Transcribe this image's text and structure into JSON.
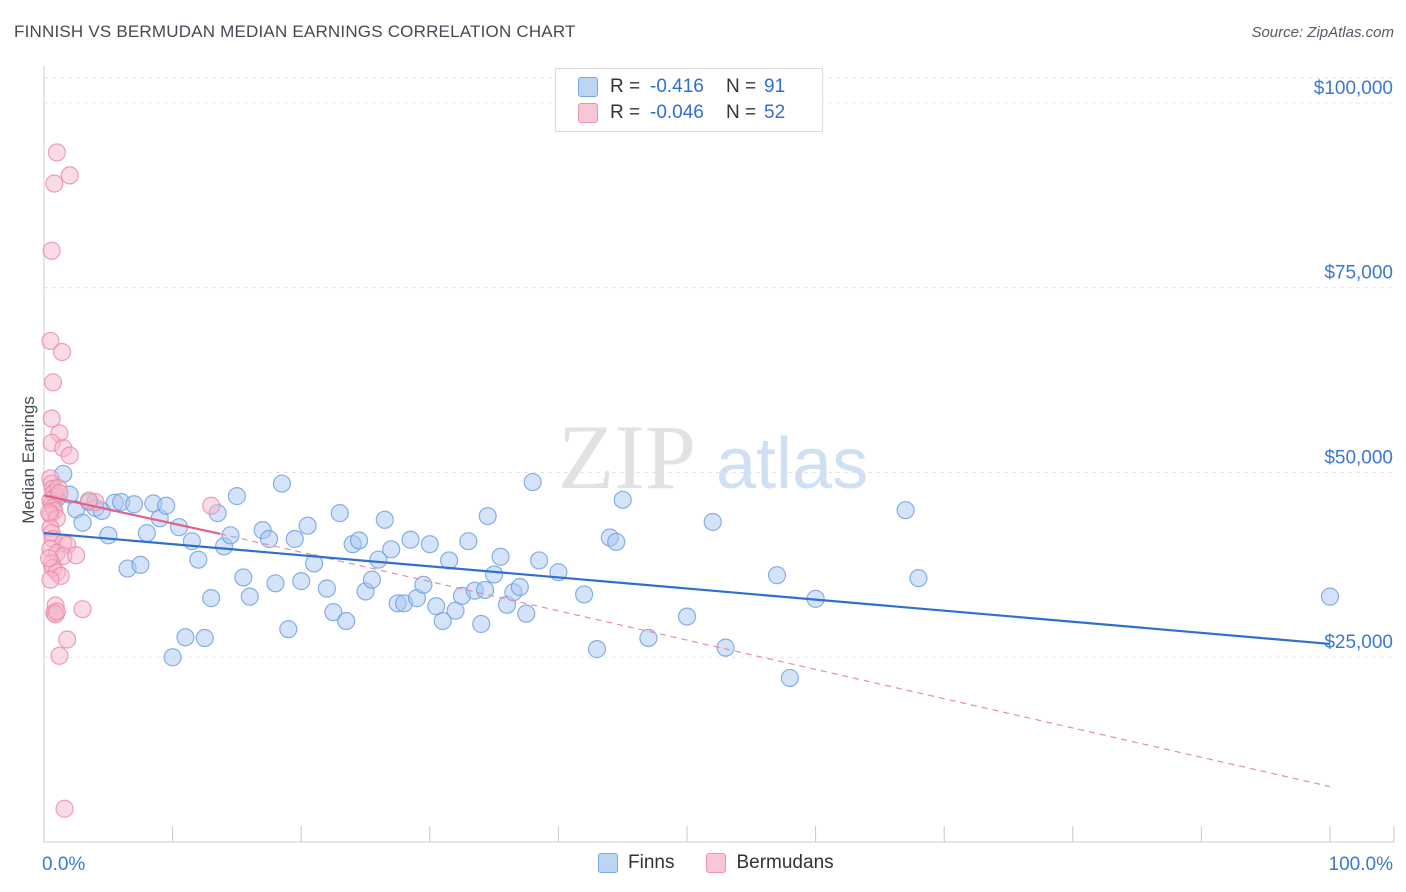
{
  "title": "FINNISH VS BERMUDAN MEDIAN EARNINGS CORRELATION CHART",
  "source": "Source: ZipAtlas.com",
  "watermark": {
    "zip": "ZIP",
    "atlas": "atlas"
  },
  "legend": [
    {
      "r_label": "R =",
      "r_value": "-0.416",
      "n_label": "N =",
      "n_value": "91",
      "color": "#a9c8f2"
    },
    {
      "r_label": "R =",
      "r_value": "-0.046",
      "n_label": "N =",
      "n_value": "52",
      "color": "#f5b6c9"
    }
  ],
  "chart_data": {
    "type": "scatter",
    "title": "FINNISH VS BERMUDAN MEDIAN EARNINGS CORRELATION CHART",
    "ylabel": "Median Earnings",
    "xlabel": "",
    "xlim": [
      0,
      100
    ],
    "ylim": [
      0,
      105000
    ],
    "x_tick_labels": [
      "0.0%",
      "100.0%"
    ],
    "y_ticks": [
      {
        "value": 25000,
        "label": "$25,000"
      },
      {
        "value": 50000,
        "label": "$50,000"
      },
      {
        "value": 75000,
        "label": "$75,000"
      },
      {
        "value": 100000,
        "label": "$100,000"
      }
    ],
    "grid": true,
    "legend_position": "top-center",
    "series": [
      {
        "name": "Finns",
        "color": "#a9c8f2",
        "stroke": "#6a9de0",
        "trend": {
          "x": [
            0,
            100
          ],
          "y": [
            41800,
            26800
          ],
          "color": "#2f6fd0"
        },
        "points": [
          [
            1.0,
            46500
          ],
          [
            1.5,
            49800
          ],
          [
            2.0,
            47000
          ],
          [
            2.5,
            45000
          ],
          [
            3.0,
            43200
          ],
          [
            3.5,
            46000
          ],
          [
            4.0,
            45200
          ],
          [
            4.5,
            44800
          ],
          [
            5.0,
            41500
          ],
          [
            5.5,
            45900
          ],
          [
            6.0,
            46000
          ],
          [
            6.5,
            37000
          ],
          [
            7.0,
            45700
          ],
          [
            7.5,
            37500
          ],
          [
            8.0,
            41800
          ],
          [
            8.5,
            45800
          ],
          [
            9.0,
            43800
          ],
          [
            9.5,
            45500
          ],
          [
            10.0,
            25000
          ],
          [
            10.5,
            42600
          ],
          [
            11.0,
            27700
          ],
          [
            11.5,
            40700
          ],
          [
            12.0,
            38200
          ],
          [
            12.5,
            27600
          ],
          [
            13.0,
            33000
          ],
          [
            13.5,
            44500
          ],
          [
            14.0,
            40000
          ],
          [
            14.5,
            41500
          ],
          [
            15.0,
            46800
          ],
          [
            15.5,
            35800
          ],
          [
            16.0,
            33200
          ],
          [
            17.0,
            42200
          ],
          [
            17.5,
            41000
          ],
          [
            18.0,
            35000
          ],
          [
            18.5,
            48500
          ],
          [
            19.0,
            28800
          ],
          [
            19.5,
            41000
          ],
          [
            20.0,
            35300
          ],
          [
            20.5,
            42800
          ],
          [
            21.0,
            37700
          ],
          [
            22.0,
            34300
          ],
          [
            22.5,
            31100
          ],
          [
            23.0,
            44500
          ],
          [
            23.5,
            29900
          ],
          [
            24.0,
            40300
          ],
          [
            24.5,
            40800
          ],
          [
            25.0,
            33900
          ],
          [
            25.5,
            35500
          ],
          [
            26.0,
            38200
          ],
          [
            26.5,
            43600
          ],
          [
            27.0,
            39600
          ],
          [
            27.5,
            32300
          ],
          [
            28.0,
            32300
          ],
          [
            28.5,
            40900
          ],
          [
            29.0,
            33000
          ],
          [
            29.5,
            34800
          ],
          [
            30.0,
            40300
          ],
          [
            30.5,
            31900
          ],
          [
            31.0,
            29900
          ],
          [
            31.5,
            38100
          ],
          [
            32.0,
            31300
          ],
          [
            32.5,
            33300
          ],
          [
            33.0,
            40700
          ],
          [
            33.5,
            34000
          ],
          [
            34.0,
            29500
          ],
          [
            34.5,
            44100
          ],
          [
            35.0,
            36200
          ],
          [
            35.5,
            38600
          ],
          [
            36.0,
            32100
          ],
          [
            36.5,
            33800
          ],
          [
            37.0,
            34500
          ],
          [
            37.5,
            30900
          ],
          [
            38.0,
            48700
          ],
          [
            38.5,
            38100
          ],
          [
            40.0,
            36500
          ],
          [
            42.0,
            33500
          ],
          [
            43.0,
            26100
          ],
          [
            44.0,
            41200
          ],
          [
            44.5,
            40600
          ],
          [
            45.0,
            46300
          ],
          [
            47.0,
            27600
          ],
          [
            50.0,
            30500
          ],
          [
            52.0,
            43300
          ],
          [
            53.0,
            26300
          ],
          [
            57.0,
            36100
          ],
          [
            58.0,
            22200
          ],
          [
            60.0,
            32900
          ],
          [
            67.0,
            44900
          ],
          [
            68.0,
            35700
          ],
          [
            100.0,
            33200
          ],
          [
            34.3,
            34100
          ]
        ]
      },
      {
        "name": "Bermudans",
        "color": "#f5b6c9",
        "stroke": "#e98aa8",
        "trend": {
          "x": [
            0,
            13.7
          ],
          "y": [
            46900,
            41700
          ],
          "color": "#e0628a"
        },
        "trend_extended": {
          "x": [
            13.7,
            100
          ],
          "y": [
            41700,
            7500
          ],
          "color": "#e98aa8"
        },
        "points": [
          [
            1.0,
            93300
          ],
          [
            2.0,
            90200
          ],
          [
            0.8,
            89100
          ],
          [
            0.6,
            80000
          ],
          [
            0.5,
            67800
          ],
          [
            1.4,
            66300
          ],
          [
            0.7,
            62200
          ],
          [
            0.6,
            57300
          ],
          [
            1.2,
            55300
          ],
          [
            0.6,
            54000
          ],
          [
            1.5,
            53300
          ],
          [
            2.0,
            52300
          ],
          [
            0.5,
            49200
          ],
          [
            0.6,
            48500
          ],
          [
            0.7,
            47800
          ],
          [
            0.8,
            47300
          ],
          [
            0.9,
            46700
          ],
          [
            0.5,
            46200
          ],
          [
            0.6,
            45700
          ],
          [
            0.7,
            45200
          ],
          [
            0.8,
            44800
          ],
          [
            0.5,
            44300
          ],
          [
            1.0,
            43800
          ],
          [
            1.1,
            47900
          ],
          [
            1.2,
            47200
          ],
          [
            0.5,
            42500
          ],
          [
            0.6,
            41800
          ],
          [
            0.7,
            41000
          ],
          [
            1.5,
            40500
          ],
          [
            1.8,
            40200
          ],
          [
            0.5,
            39700
          ],
          [
            1.0,
            39100
          ],
          [
            1.5,
            38700
          ],
          [
            2.5,
            38800
          ],
          [
            0.6,
            37700
          ],
          [
            0.7,
            37100
          ],
          [
            1.0,
            36500
          ],
          [
            1.3,
            36000
          ],
          [
            0.5,
            35500
          ],
          [
            0.9,
            32000
          ],
          [
            3.0,
            31500
          ],
          [
            0.8,
            31000
          ],
          [
            0.9,
            30800
          ],
          [
            1.0,
            31200
          ],
          [
            1.8,
            27400
          ],
          [
            1.2,
            25200
          ],
          [
            1.6,
            4500
          ],
          [
            4.0,
            46000
          ],
          [
            13.0,
            45500
          ],
          [
            3.5,
            46200
          ],
          [
            0.4,
            44600
          ],
          [
            0.4,
            38400
          ]
        ]
      }
    ]
  }
}
